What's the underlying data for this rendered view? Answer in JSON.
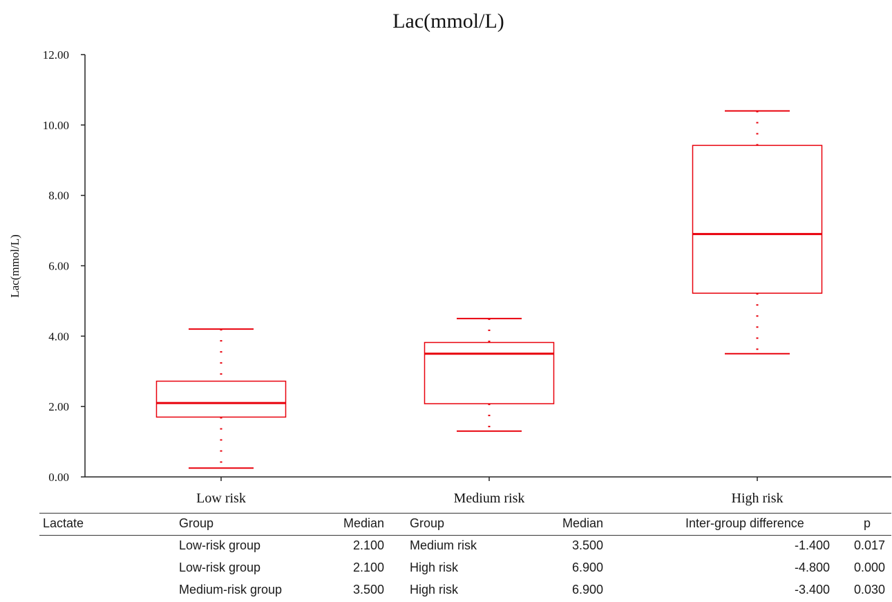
{
  "chart_data": {
    "type": "box",
    "title": "Lac(mmol/L)",
    "ylabel": "Lac(mmol/L)",
    "xlabel": "",
    "ylim": [
      0,
      12
    ],
    "yticks": [
      "0.00",
      "2.00",
      "4.00",
      "6.00",
      "8.00",
      "10.00",
      "12.00"
    ],
    "categories": [
      "Low risk",
      "Medium risk",
      "High risk"
    ],
    "boxes": [
      {
        "name": "Low risk",
        "min": 0.25,
        "q1": 1.7,
        "median": 2.1,
        "q3": 2.72,
        "max": 4.2
      },
      {
        "name": "Medium risk",
        "min": 1.3,
        "q1": 2.08,
        "median": 3.5,
        "q3": 3.82,
        "max": 4.5
      },
      {
        "name": "High risk",
        "min": 3.5,
        "q1": 5.22,
        "median": 6.9,
        "q3": 9.42,
        "max": 10.4
      }
    ],
    "color": "#e8000b",
    "grid": false,
    "legend": "none"
  },
  "table": {
    "headers": [
      "Lactate",
      "Group",
      "Median",
      "Group",
      "Median",
      "Inter-group difference",
      "p"
    ],
    "rows": [
      [
        "",
        "Low-risk group",
        "2.100",
        "Medium risk",
        "3.500",
        "-1.400",
        "0.017"
      ],
      [
        "",
        "Low-risk group",
        "2.100",
        "High risk",
        "6.900",
        "-4.800",
        "0.000"
      ],
      [
        "",
        "Medium-risk group",
        "3.500",
        "High risk",
        "6.900",
        "-3.400",
        "0.030"
      ]
    ]
  }
}
